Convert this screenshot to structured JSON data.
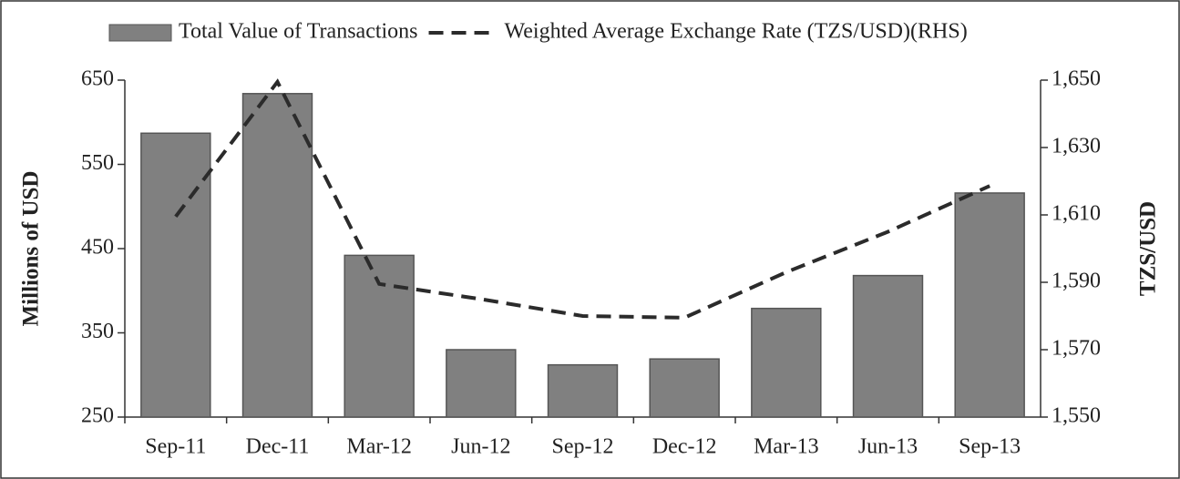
{
  "chart_data": {
    "type": "bar",
    "categories": [
      "Sep-11",
      "Dec-11",
      "Mar-12",
      "Jun-12",
      "Sep-12",
      "Dec-12",
      "Mar-13",
      "Jun-13",
      "Sep-13"
    ],
    "series": [
      {
        "name": "Total Value of Transactions",
        "type": "bar",
        "color": "#808080",
        "values": [
          587,
          634,
          442,
          330,
          312,
          319,
          379,
          418,
          516
        ]
      },
      {
        "name": "Weighted Average Exchange Rate (TZS/USD)(RHS)",
        "type": "line",
        "axis": "y2",
        "dashed": true,
        "color": "#2b2b2b",
        "values": [
          1609.5,
          1649.5,
          1589.5,
          1585,
          1580,
          1579.5,
          1593,
          1605,
          1618.6
        ]
      }
    ],
    "ylabel": "Millions of  USD",
    "y2label": "TZS/USD",
    "ylim": [
      250,
      650
    ],
    "yticks": [
      250,
      350,
      450,
      550,
      650
    ],
    "y2lim": [
      1550,
      1650
    ],
    "y2ticks": [
      {
        "value": 1550,
        "label": "1,550"
      },
      {
        "value": 1570,
        "label": "1,570"
      },
      {
        "value": 1590,
        "label": "1,590"
      },
      {
        "value": 1610,
        "label": "1,610"
      },
      {
        "value": 1630,
        "label": "1,630"
      },
      {
        "value": 1650,
        "label": "1,650"
      }
    ],
    "legend": "top"
  }
}
